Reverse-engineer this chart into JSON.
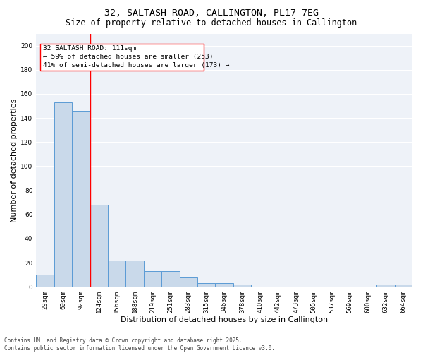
{
  "title_line1": "32, SALTASH ROAD, CALLINGTON, PL17 7EG",
  "title_line2": "Size of property relative to detached houses in Callington",
  "xlabel": "Distribution of detached houses by size in Callington",
  "ylabel": "Number of detached properties",
  "footer_line1": "Contains HM Land Registry data © Crown copyright and database right 2025.",
  "footer_line2": "Contains public sector information licensed under the Open Government Licence v3.0.",
  "categories": [
    "29sqm",
    "60sqm",
    "92sqm",
    "124sqm",
    "156sqm",
    "188sqm",
    "219sqm",
    "251sqm",
    "283sqm",
    "315sqm",
    "346sqm",
    "378sqm",
    "410sqm",
    "442sqm",
    "473sqm",
    "505sqm",
    "537sqm",
    "569sqm",
    "600sqm",
    "632sqm",
    "664sqm"
  ],
  "values": [
    10,
    153,
    146,
    68,
    22,
    22,
    13,
    13,
    8,
    3,
    3,
    2,
    0,
    0,
    0,
    0,
    0,
    0,
    0,
    2,
    2
  ],
  "bar_color": "#c9d9ea",
  "bar_edge_color": "#5b9bd5",
  "vline_x": 2.5,
  "vline_color": "red",
  "annotation_line1": "32 SALTASH ROAD: 111sqm",
  "annotation_line2": "← 59% of detached houses are smaller (253)",
  "annotation_line3": "41% of semi-detached houses are larger (173) →",
  "ylim": [
    0,
    210
  ],
  "yticks": [
    0,
    20,
    40,
    60,
    80,
    100,
    120,
    140,
    160,
    180,
    200
  ],
  "background_color": "#eef2f8",
  "grid_color": "#ffffff",
  "title_fontsize": 9.5,
  "subtitle_fontsize": 8.5,
  "tick_fontsize": 6.5,
  "ylabel_fontsize": 8,
  "xlabel_fontsize": 8,
  "annotation_fontsize": 6.8,
  "footer_fontsize": 5.5
}
